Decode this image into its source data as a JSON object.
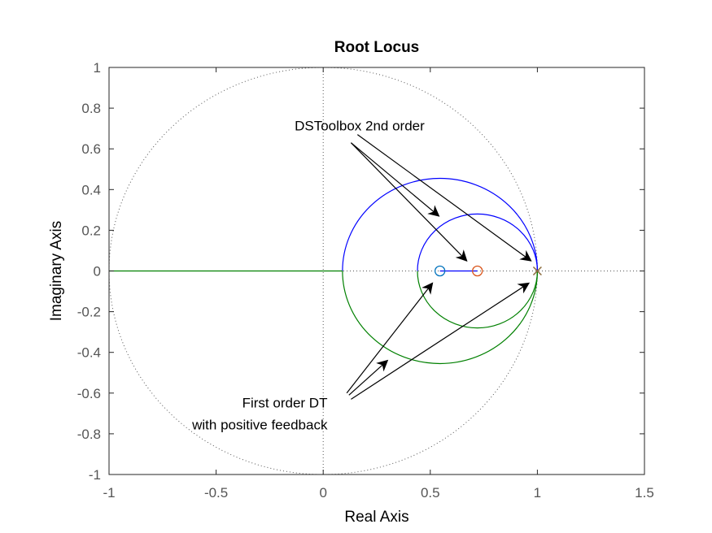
{
  "chart_data": {
    "type": "scatter",
    "title": "Root Locus",
    "xlabel": "Real Axis",
    "ylabel": "Imaginary Axis",
    "xlim": [
      -1,
      1.5
    ],
    "ylim": [
      -1,
      1
    ],
    "xticks": [
      "-1",
      "-0.5",
      "0",
      "0.5",
      "1",
      "1.5"
    ],
    "yticks": [
      "-1",
      "-0.8",
      "-0.6",
      "-0.4",
      "-0.2",
      "0",
      "0.2",
      "0.4",
      "0.6",
      "0.8",
      "1"
    ],
    "grid": false,
    "unit_circle": true,
    "colors": {
      "blue": "#0000ff",
      "green": "#008000",
      "zero_blue": "#0072bd",
      "zero_red": "#d95319",
      "pole": "#8a6a3a"
    },
    "branches": [
      {
        "color": "blue",
        "shape": "arc_upper",
        "center": [
          0.545,
          0
        ],
        "radius": 0.455
      },
      {
        "color": "green",
        "shape": "arc_lower",
        "center": [
          0.545,
          0
        ],
        "radius": 0.455
      },
      {
        "color": "blue",
        "shape": "arc_upper",
        "center": [
          0.72,
          0
        ],
        "radius": 0.28
      },
      {
        "color": "green",
        "shape": "arc_lower",
        "center": [
          0.72,
          0
        ],
        "radius": 0.28
      },
      {
        "color": "green",
        "shape": "segment",
        "points": [
          [
            -1,
            0
          ],
          [
            0.09,
            0
          ]
        ]
      },
      {
        "color": "blue",
        "shape": "segment",
        "points": [
          [
            0.545,
            0
          ],
          [
            0.72,
            0
          ]
        ]
      }
    ],
    "poles": [
      {
        "x": 1.0,
        "y": 0
      }
    ],
    "zeros": [
      {
        "x": 0.545,
        "y": 0,
        "color": "zero_blue"
      },
      {
        "x": 0.72,
        "y": 0,
        "color": "zero_red"
      }
    ],
    "annotations": [
      {
        "lines": [
          "DSToolbox 2nd order"
        ],
        "text_at": [
          0.17,
          0.69
        ],
        "anchor": "middle",
        "arrows": [
          {
            "from": [
              0.13,
              0.63
            ],
            "to": [
              0.54,
              0.27
            ]
          },
          {
            "from": [
              0.13,
              0.63
            ],
            "to": [
              0.67,
              0.05
            ]
          },
          {
            "from": [
              0.16,
              0.67
            ],
            "to": [
              0.97,
              0.05
            ]
          }
        ]
      },
      {
        "lines": [
          "First order DT",
          "with positive feedback"
        ],
        "text_at": [
          0.02,
          -0.67
        ],
        "anchor": "end",
        "arrows": [
          {
            "from": [
              0.11,
              -0.6
            ],
            "to": [
              0.51,
              -0.06
            ]
          },
          {
            "from": [
              0.13,
              -0.63
            ],
            "to": [
              0.96,
              -0.06
            ]
          },
          {
            "from": [
              0.12,
              -0.61
            ],
            "to": [
              0.3,
              -0.44
            ]
          }
        ]
      }
    ]
  }
}
